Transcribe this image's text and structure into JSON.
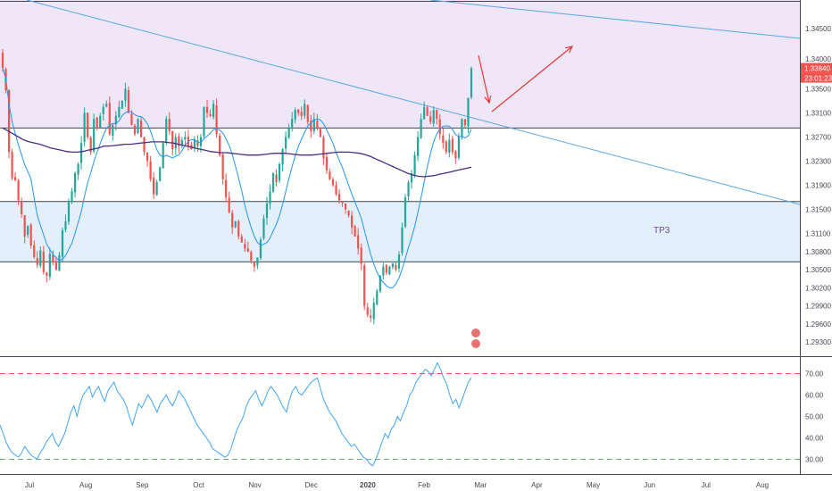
{
  "chart_data": {
    "type": "candlestick",
    "symbol_scale": "price",
    "price_axis": {
      "ticks": [
        "1.34500",
        "1.34000",
        "1.33500",
        "1.33100",
        "1.32700",
        "1.32300",
        "1.31900",
        "1.31500",
        "1.31100",
        "1.30800",
        "1.30500",
        "1.30200",
        "1.29900",
        "1.29600",
        "1.29300"
      ],
      "range": [
        1.29,
        1.35
      ]
    },
    "last_price": {
      "value": "1.33840",
      "countdown": "23:01:23",
      "color": "#ef5350"
    },
    "time_axis": {
      "labels": [
        {
          "text": "Jul",
          "bold": false
        },
        {
          "text": "Aug",
          "bold": false
        },
        {
          "text": "Sep",
          "bold": false
        },
        {
          "text": "Oct",
          "bold": false
        },
        {
          "text": "Nov",
          "bold": false
        },
        {
          "text": "Dec",
          "bold": false
        },
        {
          "text": "2020",
          "bold": true
        },
        {
          "text": "Feb",
          "bold": false
        },
        {
          "text": "Mar",
          "bold": false
        },
        {
          "text": "Apr",
          "bold": false
        },
        {
          "text": "May",
          "bold": false
        },
        {
          "text": "Jun",
          "bold": false
        },
        {
          "text": "Jul",
          "bold": false
        },
        {
          "text": "Aug",
          "bold": false
        }
      ]
    },
    "zones": [
      {
        "name": "resistance-zone",
        "from": 1.3285,
        "to": 1.35,
        "color": "#efe6f7"
      },
      {
        "name": "support-zone",
        "from": 1.3063,
        "to": 1.3163,
        "color": "#e3f0fb"
      }
    ],
    "zone_label": "TP3",
    "closes": [
      1.3385,
      1.3348,
      1.3245,
      1.3202,
      1.3198,
      1.3165,
      1.3142,
      1.3105,
      1.3122,
      1.309,
      1.3071,
      1.3058,
      1.3082,
      1.3046,
      1.304,
      1.3076,
      1.3062,
      1.305,
      1.3074,
      1.3115,
      1.313,
      1.3162,
      1.318,
      1.321,
      1.3225,
      1.326,
      1.331,
      1.327,
      1.3245,
      1.33,
      1.3285,
      1.3305,
      1.332,
      1.3325,
      1.3275,
      1.329,
      1.3305,
      1.332,
      1.333,
      1.335,
      1.331,
      1.329,
      1.3275,
      1.33,
      1.327,
      1.3245,
      1.323,
      1.32,
      1.3175,
      1.3195,
      1.322,
      1.326,
      1.33,
      1.328,
      1.325,
      1.327,
      1.3255,
      1.3265,
      1.327,
      1.3255,
      1.325,
      1.3265,
      1.3255,
      1.327,
      1.332,
      1.331,
      1.3305,
      1.3325,
      1.3275,
      1.324,
      1.32,
      1.317,
      1.3145,
      1.312,
      1.313,
      1.3105,
      1.3095,
      1.3085,
      1.308,
      1.3065,
      1.3055,
      1.307,
      1.31,
      1.3135,
      1.316,
      1.318,
      1.321,
      1.3195,
      1.3225,
      1.325,
      1.327,
      1.3285,
      1.33,
      1.3315,
      1.331,
      1.3305,
      1.3325,
      1.3295,
      1.328,
      1.33,
      1.3285,
      1.327,
      1.3235,
      1.3215,
      1.32,
      1.319,
      1.3175,
      1.3165,
      1.316,
      1.315,
      1.314,
      1.312,
      1.3105,
      1.3085,
      1.306,
      1.299,
      1.2975,
      1.297,
      1.2995,
      1.3015,
      1.304,
      1.3055,
      1.3045,
      1.3055,
      1.306,
      1.305,
      1.3075,
      1.312,
      1.317,
      1.3195,
      1.321,
      1.324,
      1.327,
      1.33,
      1.332,
      1.3305,
      1.3295,
      1.3315,
      1.33,
      1.3275,
      1.326,
      1.3245,
      1.3265,
      1.3245,
      1.3235,
      1.327,
      1.33,
      1.329,
      1.3335,
      1.3384
    ],
    "ma_long": [
      1.3285,
      1.328,
      1.3275,
      1.327,
      1.3265,
      1.3262,
      1.326,
      1.3258,
      1.3255,
      1.3252,
      1.325,
      1.3248,
      1.3246,
      1.3245,
      1.3245,
      1.3246,
      1.3248,
      1.325,
      1.3252,
      1.3255,
      1.3255,
      1.3256,
      1.3257,
      1.3258,
      1.3258,
      1.3259,
      1.326,
      1.3261,
      1.3262,
      1.3262,
      1.3262,
      1.3261,
      1.326,
      1.3258,
      1.3256,
      1.3254,
      1.3252,
      1.325,
      1.3248,
      1.3246,
      1.3245,
      1.3244,
      1.3244,
      1.3243,
      1.3242,
      1.3241,
      1.324,
      1.324,
      1.324,
      1.3241,
      1.3242,
      1.3243,
      1.3243,
      1.3243,
      1.3242,
      1.3241,
      1.324,
      1.324,
      1.324,
      1.3241,
      1.3242,
      1.3243,
      1.3244,
      1.3245,
      1.3245,
      1.3245,
      1.3244,
      1.3243,
      1.3241,
      1.3238,
      1.3234,
      1.323,
      1.3226,
      1.3222,
      1.3218,
      1.3214,
      1.321,
      1.3207,
      1.3205,
      1.3204,
      1.3205,
      1.3206,
      1.3208,
      1.321,
      1.3212,
      1.3214,
      1.3216,
      1.3218,
      1.322
    ],
    "ma_long_start": 0,
    "ma_long_step": 1.7,
    "rsi": {
      "ticks": [
        "70.00",
        "60.00",
        "50.00",
        "40.00",
        "30.00"
      ],
      "overbought": 70,
      "oversold": 30,
      "values": [
        46,
        42,
        38,
        35,
        33,
        32,
        31,
        33,
        36,
        34,
        32,
        31,
        30,
        33,
        35,
        38,
        40,
        42,
        38,
        36,
        39,
        42,
        47,
        52,
        55,
        50,
        56,
        60,
        62,
        64,
        59,
        62,
        64,
        60,
        57,
        62,
        64,
        66,
        62,
        60,
        58,
        55,
        50,
        46,
        51,
        56,
        54,
        57,
        60,
        58,
        55,
        52,
        56,
        58,
        60,
        57,
        55,
        58,
        62,
        60,
        58,
        55,
        52,
        49,
        46,
        44,
        42,
        40,
        38,
        35,
        34,
        33,
        32,
        31,
        32,
        35,
        40,
        44,
        47,
        50,
        55,
        58,
        60,
        62,
        58,
        55,
        58,
        62,
        64,
        62,
        60,
        57,
        54,
        52,
        58,
        62,
        64,
        61,
        60,
        62,
        64,
        66,
        67,
        68,
        63,
        58,
        55,
        52,
        50,
        48,
        45,
        42,
        40,
        38,
        36,
        37,
        35,
        33,
        31,
        30,
        28,
        27,
        30,
        34,
        38,
        42,
        40,
        44,
        46,
        50,
        48,
        52,
        55,
        60,
        62,
        66,
        68,
        70,
        72,
        71,
        69,
        72,
        75,
        72,
        68,
        65,
        60,
        56,
        58,
        54,
        58,
        62,
        66,
        68
      ]
    }
  },
  "colors": {
    "up": "#26a69a",
    "down": "#ef5350",
    "ma_short": "#2196f3",
    "ma_long": "#4a2d82",
    "trendline": "#5aa9e6",
    "arrow": "#e53935",
    "zone_border": "#434651",
    "rsi_line": "#42a5f5",
    "rsi_overbought": "#ef5350",
    "rsi_oversold": "#66bb6a"
  }
}
